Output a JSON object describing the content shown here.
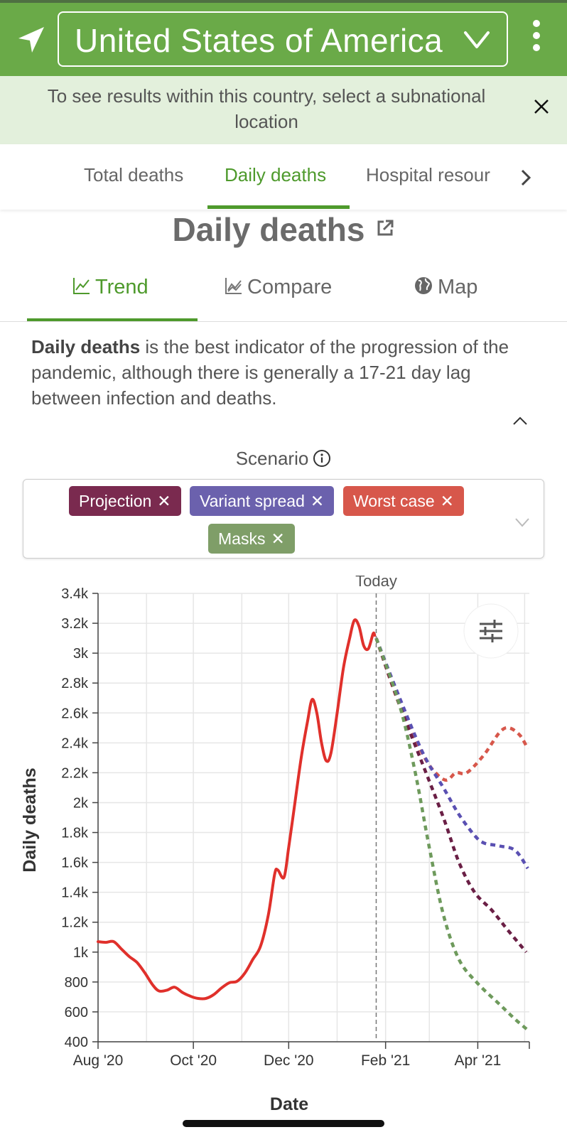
{
  "header": {
    "country": "United States of America"
  },
  "notice": {
    "text": "To see results within this country, select a subnational location"
  },
  "tabs": [
    {
      "label": "Total deaths",
      "active": false
    },
    {
      "label": "Daily deaths",
      "active": true
    },
    {
      "label": "Hospital resour",
      "active": false
    }
  ],
  "page_title": "Daily deaths",
  "subtabs": [
    {
      "label": "Trend",
      "active": true
    },
    {
      "label": "Compare",
      "active": false
    },
    {
      "label": "Map",
      "active": false
    }
  ],
  "description": {
    "bold": "Daily deaths",
    "rest": " is the best indicator of the progression of the pandemic, although there is generally a 17-21 day lag between infection and deaths."
  },
  "scenario": {
    "label": "Scenario",
    "chips": [
      {
        "label": "Projection",
        "color": "#7a2a4f"
      },
      {
        "label": "Variant spread",
        "color": "#6b61ad"
      },
      {
        "label": "Worst case",
        "color": "#d7574b"
      },
      {
        "label": "Masks",
        "color": "#7f9e68"
      }
    ]
  },
  "chart_data": {
    "type": "line",
    "xlabel": "Date",
    "ylabel": "Daily deaths",
    "today_label": "Today",
    "today_date": "2021-01-26",
    "xlim": [
      "2020-08-01",
      "2021-05-04"
    ],
    "ylim": [
      400,
      3400
    ],
    "yticks": [
      400,
      600,
      800,
      1000,
      1200,
      1400,
      1600,
      1800,
      2000,
      2200,
      2400,
      2600,
      2800,
      3000,
      3200,
      3400
    ],
    "ytick_labels": [
      "400",
      "600",
      "800",
      "1k",
      "1.2k",
      "1.4k",
      "1.6k",
      "1.8k",
      "2k",
      "2.2k",
      "2.4k",
      "2.6k",
      "2.8k",
      "3k",
      "3.2k",
      "3.4k"
    ],
    "xticks": [
      {
        "date": "2020-08-01",
        "label": "Aug '20"
      },
      {
        "date": "2020-10-01",
        "label": "Oct '20"
      },
      {
        "date": "2020-12-01",
        "label": "Dec '20"
      },
      {
        "date": "2021-02-01",
        "label": "Feb '21"
      },
      {
        "date": "2021-04-01",
        "label": "Apr '21"
      }
    ],
    "grid": true,
    "series": [
      {
        "name": "Observed",
        "color": "#e0302b",
        "style": "solid",
        "points": [
          [
            "2020-08-01",
            1070
          ],
          [
            "2020-08-06",
            1065
          ],
          [
            "2020-08-11",
            1070
          ],
          [
            "2020-08-16",
            1020
          ],
          [
            "2020-08-21",
            970
          ],
          [
            "2020-08-26",
            930
          ],
          [
            "2020-08-31",
            860
          ],
          [
            "2020-09-05",
            780
          ],
          [
            "2020-09-09",
            740
          ],
          [
            "2020-09-14",
            745
          ],
          [
            "2020-09-19",
            765
          ],
          [
            "2020-09-24",
            730
          ],
          [
            "2020-09-29",
            705
          ],
          [
            "2020-10-04",
            690
          ],
          [
            "2020-10-09",
            690
          ],
          [
            "2020-10-14",
            715
          ],
          [
            "2020-10-19",
            760
          ],
          [
            "2020-10-24",
            795
          ],
          [
            "2020-10-29",
            805
          ],
          [
            "2020-11-03",
            860
          ],
          [
            "2020-11-08",
            950
          ],
          [
            "2020-11-13",
            1040
          ],
          [
            "2020-11-18",
            1250
          ],
          [
            "2020-11-22",
            1520
          ],
          [
            "2020-11-24",
            1550
          ],
          [
            "2020-11-28",
            1500
          ],
          [
            "2020-12-01",
            1700
          ],
          [
            "2020-12-05",
            2000
          ],
          [
            "2020-12-09",
            2300
          ],
          [
            "2020-12-13",
            2540
          ],
          [
            "2020-12-16",
            2690
          ],
          [
            "2020-12-19",
            2600
          ],
          [
            "2020-12-22",
            2400
          ],
          [
            "2020-12-25",
            2280
          ],
          [
            "2020-12-28",
            2330
          ],
          [
            "2021-01-01",
            2600
          ],
          [
            "2021-01-05",
            2900
          ],
          [
            "2021-01-09",
            3100
          ],
          [
            "2021-01-12",
            3220
          ],
          [
            "2021-01-15",
            3180
          ],
          [
            "2021-01-18",
            3050
          ],
          [
            "2021-01-21",
            3030
          ],
          [
            "2021-01-24",
            3130
          ],
          [
            "2021-01-25",
            3120
          ]
        ]
      },
      {
        "name": "Worst case",
        "color": "#d7574b",
        "style": "dotted",
        "points": [
          [
            "2021-01-26",
            3100
          ],
          [
            "2021-02-10",
            2650
          ],
          [
            "2021-02-25",
            2320
          ],
          [
            "2021-03-05",
            2200
          ],
          [
            "2021-03-12",
            2150
          ],
          [
            "2021-03-18",
            2200
          ],
          [
            "2021-03-25",
            2200
          ],
          [
            "2021-04-05",
            2320
          ],
          [
            "2021-04-15",
            2470
          ],
          [
            "2021-04-21",
            2500
          ],
          [
            "2021-04-28",
            2450
          ],
          [
            "2021-05-03",
            2360
          ]
        ]
      },
      {
        "name": "Variant spread",
        "color": "#5a50b2",
        "style": "dotted",
        "points": [
          [
            "2021-01-26",
            3100
          ],
          [
            "2021-02-10",
            2700
          ],
          [
            "2021-02-25",
            2330
          ],
          [
            "2021-03-10",
            2100
          ],
          [
            "2021-03-20",
            1920
          ],
          [
            "2021-03-30",
            1780
          ],
          [
            "2021-04-05",
            1730
          ],
          [
            "2021-04-15",
            1710
          ],
          [
            "2021-04-25",
            1680
          ],
          [
            "2021-05-03",
            1560
          ]
        ]
      },
      {
        "name": "Projection",
        "color": "#6a1f45",
        "style": "dotted",
        "points": [
          [
            "2021-01-26",
            3100
          ],
          [
            "2021-02-10",
            2650
          ],
          [
            "2021-02-25",
            2250
          ],
          [
            "2021-03-10",
            1900
          ],
          [
            "2021-03-20",
            1600
          ],
          [
            "2021-03-30",
            1400
          ],
          [
            "2021-04-10",
            1280
          ],
          [
            "2021-04-20",
            1150
          ],
          [
            "2021-05-02",
            1000
          ]
        ]
      },
      {
        "name": "Masks",
        "color": "#6e9a5c",
        "style": "dotted",
        "points": [
          [
            "2021-01-26",
            3100
          ],
          [
            "2021-02-10",
            2650
          ],
          [
            "2021-02-20",
            2200
          ],
          [
            "2021-03-01",
            1700
          ],
          [
            "2021-03-10",
            1250
          ],
          [
            "2021-03-20",
            950
          ],
          [
            "2021-04-01",
            790
          ],
          [
            "2021-04-15",
            650
          ],
          [
            "2021-04-25",
            550
          ],
          [
            "2021-05-04",
            470
          ]
        ]
      }
    ]
  }
}
